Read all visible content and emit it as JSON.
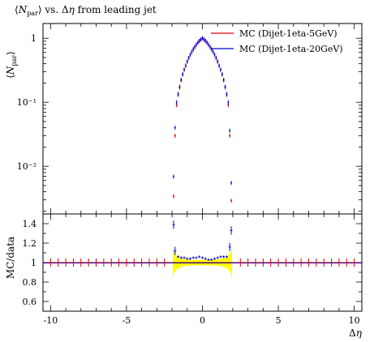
{
  "chart_data": [
    {
      "type": "scatter",
      "panel": "main",
      "title": "⟨N_par⟩ vs. Δη from leading jet",
      "ylabel": "⟨N_par⟩",
      "xlabel": "",
      "xlim": [
        -10.5,
        10.5
      ],
      "ylim": [
        0.0018,
        1.7
      ],
      "yscale": "log",
      "legend_position": "top-right",
      "x_ticks": [
        -10,
        -5,
        0,
        5,
        10
      ],
      "y_ticks": [
        {
          "value": 1,
          "label": "1"
        },
        {
          "value": 0.1,
          "label": "10⁻¹"
        },
        {
          "value": 0.01,
          "label": "10⁻²"
        }
      ],
      "series": [
        {
          "name": "MC (Dijet-1eta-5GeV)",
          "color": "#e00000",
          "x": [
            -1.9,
            -1.8,
            -1.7,
            -1.6,
            -1.5,
            -1.4,
            -1.3,
            -1.2,
            -1.1,
            -1.0,
            -0.9,
            -0.8,
            -0.7,
            -0.6,
            -0.5,
            -0.4,
            -0.3,
            -0.2,
            -0.1,
            0.0,
            0.1,
            0.2,
            0.3,
            0.4,
            0.5,
            0.6,
            0.7,
            0.8,
            0.9,
            1.0,
            1.1,
            1.2,
            1.3,
            1.4,
            1.5,
            1.6,
            1.7,
            1.8,
            1.9
          ],
          "y": [
            0.0034,
            0.03,
            0.09,
            0.13,
            0.17,
            0.22,
            0.27,
            0.32,
            0.37,
            0.43,
            0.49,
            0.55,
            0.61,
            0.67,
            0.73,
            0.79,
            0.85,
            0.91,
            0.96,
            1.0,
            0.96,
            0.91,
            0.85,
            0.79,
            0.73,
            0.67,
            0.61,
            0.55,
            0.49,
            0.43,
            0.37,
            0.32,
            0.27,
            0.22,
            0.17,
            0.13,
            0.09,
            0.03,
            0.0029
          ]
        },
        {
          "name": "MC (Dijet-1eta-20GeV)",
          "color": "#0000e0",
          "x": [
            -1.9,
            -1.8,
            -1.7,
            -1.6,
            -1.5,
            -1.4,
            -1.3,
            -1.2,
            -1.1,
            -1.0,
            -0.9,
            -0.8,
            -0.7,
            -0.6,
            -0.5,
            -0.4,
            -0.3,
            -0.2,
            -0.1,
            0.0,
            0.1,
            0.2,
            0.3,
            0.4,
            0.5,
            0.6,
            0.7,
            0.8,
            0.9,
            1.0,
            1.1,
            1.2,
            1.3,
            1.4,
            1.5,
            1.6,
            1.7,
            1.8,
            1.9
          ],
          "y": [
            0.0069,
            0.04,
            0.1,
            0.135,
            0.175,
            0.225,
            0.275,
            0.325,
            0.375,
            0.435,
            0.495,
            0.555,
            0.615,
            0.675,
            0.735,
            0.795,
            0.855,
            0.91,
            0.96,
            1.0,
            0.96,
            0.91,
            0.855,
            0.795,
            0.735,
            0.675,
            0.615,
            0.555,
            0.495,
            0.435,
            0.375,
            0.325,
            0.275,
            0.225,
            0.175,
            0.135,
            0.1,
            0.036,
            0.0055
          ]
        }
      ]
    },
    {
      "type": "scatter",
      "panel": "ratio",
      "title": "",
      "xlabel": "Δη",
      "ylabel": "MC/data",
      "xlim": [
        -10.5,
        10.5
      ],
      "ylim": [
        0.5,
        1.5
      ],
      "x_ticks": [
        -10,
        -5,
        0,
        5,
        10
      ],
      "y_ticks": [
        0.6,
        0.8,
        1,
        1.2,
        1.4
      ],
      "reference_line": 1,
      "band_color": "#ffff00",
      "series": [
        {
          "color": "#e00000",
          "x": [
            -10,
            -9.5,
            -9,
            -8.5,
            -8,
            -7.5,
            -7,
            -6.5,
            -6,
            -5.5,
            -5,
            -4.5,
            -4,
            -3.5,
            -3,
            -2.5,
            2.5,
            3,
            3.5,
            4,
            4.5,
            5,
            5.5,
            6,
            6.5,
            7,
            7.5,
            8,
            8.5,
            9,
            9.5,
            10
          ],
          "y": [
            1,
            1,
            1,
            1,
            1,
            1,
            1,
            1,
            1,
            1,
            1,
            1,
            1,
            1,
            1,
            1,
            1,
            1,
            1,
            1,
            1,
            1,
            1,
            1,
            1,
            1,
            1,
            1,
            1,
            1,
            1,
            1
          ]
        },
        {
          "color": "#0000e0",
          "x": [
            -1.9,
            -1.8,
            -1.6,
            -1.4,
            -1.2,
            -1.0,
            -0.8,
            -0.6,
            -0.4,
            -0.2,
            0.0,
            0.2,
            0.4,
            0.6,
            0.8,
            1.0,
            1.2,
            1.4,
            1.6,
            1.8,
            1.9
          ],
          "y": [
            1.39,
            1.12,
            1.06,
            1.05,
            1.05,
            1.04,
            1.04,
            1.05,
            1.05,
            1.06,
            1.05,
            1.04,
            1.03,
            1.03,
            1.04,
            1.05,
            1.06,
            1.06,
            1.06,
            1.16,
            1.33
          ]
        }
      ]
    }
  ]
}
